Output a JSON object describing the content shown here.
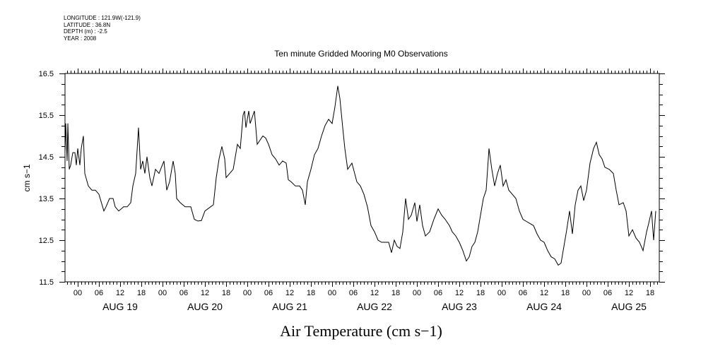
{
  "header": {
    "meta_lines": [
      "LONGITUDE : 121.9W(-121.9)",
      "LATITUDE : 36.8N",
      "DEPTH (m) : -2.5",
      "YEAR : 2008"
    ]
  },
  "chart_data": {
    "type": "line",
    "title": "Ten minute Gridded Mooring M0 Observations",
    "xlabel": "Air Temperature (cm s−1)",
    "ylabel": "cm s−1",
    "x_units": "hours since AUG 19 00:00",
    "xlim": [
      -3.6,
      164.6
    ],
    "ylim": [
      11.5,
      16.5
    ],
    "y_ticks": [
      "11.5",
      "12.5",
      "13.5",
      "14.5",
      "15.5",
      "16.5"
    ],
    "x_tick_labels": [
      "00",
      "06",
      "12",
      "18",
      "00",
      "06",
      "12",
      "18",
      "00",
      "06",
      "12",
      "18",
      "00",
      "06",
      "12",
      "18",
      "00",
      "06",
      "12",
      "18",
      "00",
      "06",
      "12",
      "18",
      "00",
      "06",
      "12",
      "18"
    ],
    "day_labels": [
      "AUG 19",
      "AUG 20",
      "AUG 21",
      "AUG 22",
      "AUG 23",
      "AUG 24",
      "AUG 25"
    ],
    "grid": false,
    "series": [
      {
        "name": "Air Temperature",
        "points": [
          [
            -3.6,
            14.6
          ],
          [
            -3.4,
            15.3
          ],
          [
            -3.0,
            14.4
          ],
          [
            -2.8,
            15.3
          ],
          [
            -2.4,
            14.2
          ],
          [
            -2,
            14.3
          ],
          [
            -1.4,
            14.6
          ],
          [
            -0.8,
            14.6
          ],
          [
            -0.4,
            14.3
          ],
          [
            0,
            14.7
          ],
          [
            0.6,
            14.3
          ],
          [
            1,
            14.7
          ],
          [
            1.6,
            15.0
          ],
          [
            2,
            14.1
          ],
          [
            3,
            13.8
          ],
          [
            4,
            13.7
          ],
          [
            5,
            13.7
          ],
          [
            6,
            13.6
          ],
          [
            7.4,
            13.2
          ],
          [
            8,
            13.3
          ],
          [
            9,
            13.5
          ],
          [
            10,
            13.5
          ],
          [
            10.6,
            13.3
          ],
          [
            11.6,
            13.2
          ],
          [
            13,
            13.3
          ],
          [
            14,
            13.3
          ],
          [
            15,
            13.4
          ],
          [
            15.6,
            13.8
          ],
          [
            16.4,
            14.1
          ],
          [
            17.2,
            15.2
          ],
          [
            17.8,
            14.2
          ],
          [
            18.4,
            14.4
          ],
          [
            19,
            14.1
          ],
          [
            19.6,
            14.5
          ],
          [
            20.4,
            14.0
          ],
          [
            21,
            13.8
          ],
          [
            22,
            14.2
          ],
          [
            23,
            14.1
          ],
          [
            24.4,
            14.4
          ],
          [
            25.2,
            13.7
          ],
          [
            26,
            13.9
          ],
          [
            27,
            14.4
          ],
          [
            27.6,
            14.1
          ],
          [
            28,
            13.5
          ],
          [
            29,
            13.4
          ],
          [
            30.4,
            13.3
          ],
          [
            32,
            13.3
          ],
          [
            33,
            13.0
          ],
          [
            34,
            12.96
          ],
          [
            35,
            12.97
          ],
          [
            36,
            13.2
          ],
          [
            37.6,
            13.3
          ],
          [
            38.4,
            13.35
          ],
          [
            39.2,
            14.0
          ],
          [
            40,
            14.45
          ],
          [
            40.8,
            14.75
          ],
          [
            41.6,
            14.45
          ],
          [
            42,
            14.0
          ],
          [
            43,
            14.1
          ],
          [
            44,
            14.2
          ],
          [
            45.2,
            14.8
          ],
          [
            46,
            14.7
          ],
          [
            46.8,
            15.5
          ],
          [
            47.2,
            15.6
          ],
          [
            47.6,
            15.2
          ],
          [
            48.4,
            15.6
          ],
          [
            48.8,
            15.3
          ],
          [
            50,
            15.6
          ],
          [
            50.8,
            14.8
          ],
          [
            51.6,
            14.9
          ],
          [
            52.4,
            15.0
          ],
          [
            53.2,
            14.95
          ],
          [
            54,
            14.8
          ],
          [
            55,
            14.55
          ],
          [
            56,
            14.45
          ],
          [
            57,
            14.3
          ],
          [
            58,
            14.4
          ],
          [
            59,
            14.35
          ],
          [
            59.6,
            13.95
          ],
          [
            60.4,
            13.9
          ],
          [
            61.6,
            13.8
          ],
          [
            62.8,
            13.8
          ],
          [
            63.6,
            13.7
          ],
          [
            64.4,
            13.35
          ],
          [
            65,
            13.9
          ],
          [
            66,
            14.2
          ],
          [
            67,
            14.55
          ],
          [
            68,
            14.7
          ],
          [
            69,
            15.0
          ],
          [
            70,
            15.25
          ],
          [
            71,
            15.4
          ],
          [
            72,
            15.3
          ],
          [
            72.8,
            15.7
          ],
          [
            73.6,
            16.2
          ],
          [
            74.2,
            15.9
          ],
          [
            75,
            15.2
          ],
          [
            75.6,
            14.7
          ],
          [
            76.4,
            14.2
          ],
          [
            77.6,
            14.35
          ],
          [
            79,
            13.9
          ],
          [
            80,
            13.8
          ],
          [
            81,
            13.6
          ],
          [
            82,
            13.3
          ],
          [
            83,
            12.85
          ],
          [
            84,
            12.7
          ],
          [
            85,
            12.5
          ],
          [
            86,
            12.45
          ],
          [
            87,
            12.45
          ],
          [
            88,
            12.45
          ],
          [
            88.8,
            12.2
          ],
          [
            89.6,
            12.5
          ],
          [
            90.4,
            12.35
          ],
          [
            91.2,
            12.3
          ],
          [
            92,
            12.7
          ],
          [
            92.8,
            13.5
          ],
          [
            93.6,
            13.0
          ],
          [
            94.4,
            13.1
          ],
          [
            95.4,
            13.4
          ],
          [
            96,
            12.95
          ],
          [
            96.8,
            13.35
          ],
          [
            97.6,
            12.85
          ],
          [
            98.4,
            12.6
          ],
          [
            99.6,
            12.7
          ],
          [
            100.8,
            13.0
          ],
          [
            102,
            13.25
          ],
          [
            103,
            13.1
          ],
          [
            104,
            13.0
          ],
          [
            105.2,
            12.85
          ],
          [
            106,
            12.7
          ],
          [
            107,
            12.6
          ],
          [
            108,
            12.45
          ],
          [
            109,
            12.25
          ],
          [
            110,
            12.0
          ],
          [
            110.8,
            12.1
          ],
          [
            111.6,
            12.35
          ],
          [
            112.4,
            12.45
          ],
          [
            113.2,
            12.7
          ],
          [
            114,
            13.1
          ],
          [
            114.8,
            13.5
          ],
          [
            115.6,
            13.7
          ],
          [
            116.4,
            14.7
          ],
          [
            117.2,
            14.2
          ],
          [
            118,
            13.8
          ],
          [
            118.8,
            14.1
          ],
          [
            119.6,
            14.3
          ],
          [
            120.4,
            13.8
          ],
          [
            121.2,
            13.95
          ],
          [
            122,
            13.7
          ],
          [
            123,
            13.6
          ],
          [
            124,
            13.5
          ],
          [
            125,
            13.2
          ],
          [
            126,
            13.0
          ],
          [
            127,
            12.95
          ],
          [
            128,
            12.9
          ],
          [
            129,
            12.85
          ],
          [
            130,
            12.65
          ],
          [
            131,
            12.5
          ],
          [
            132,
            12.45
          ],
          [
            133,
            12.25
          ],
          [
            134,
            12.1
          ],
          [
            135,
            12.05
          ],
          [
            136,
            11.9
          ],
          [
            136.8,
            11.95
          ],
          [
            137.6,
            12.35
          ],
          [
            138.4,
            12.75
          ],
          [
            139.2,
            13.2
          ],
          [
            140,
            12.65
          ],
          [
            140.8,
            13.35
          ],
          [
            141.6,
            13.7
          ],
          [
            142.4,
            13.8
          ],
          [
            143.2,
            13.45
          ],
          [
            144,
            13.7
          ],
          [
            145,
            14.35
          ],
          [
            146,
            14.7
          ],
          [
            146.8,
            14.85
          ],
          [
            147.6,
            14.55
          ],
          [
            148.4,
            14.45
          ],
          [
            149.2,
            14.25
          ],
          [
            150.4,
            14.2
          ],
          [
            151.6,
            14.1
          ],
          [
            152.4,
            13.7
          ],
          [
            153.2,
            13.35
          ],
          [
            154.4,
            13.4
          ],
          [
            155.2,
            13.2
          ],
          [
            156,
            12.6
          ],
          [
            157,
            12.75
          ],
          [
            158,
            12.55
          ],
          [
            159,
            12.45
          ],
          [
            160,
            12.25
          ],
          [
            161,
            12.7
          ],
          [
            161.6,
            12.9
          ],
          [
            162.4,
            13.2
          ],
          [
            163,
            12.5
          ],
          [
            163.6,
            13.2
          ]
        ]
      }
    ]
  }
}
